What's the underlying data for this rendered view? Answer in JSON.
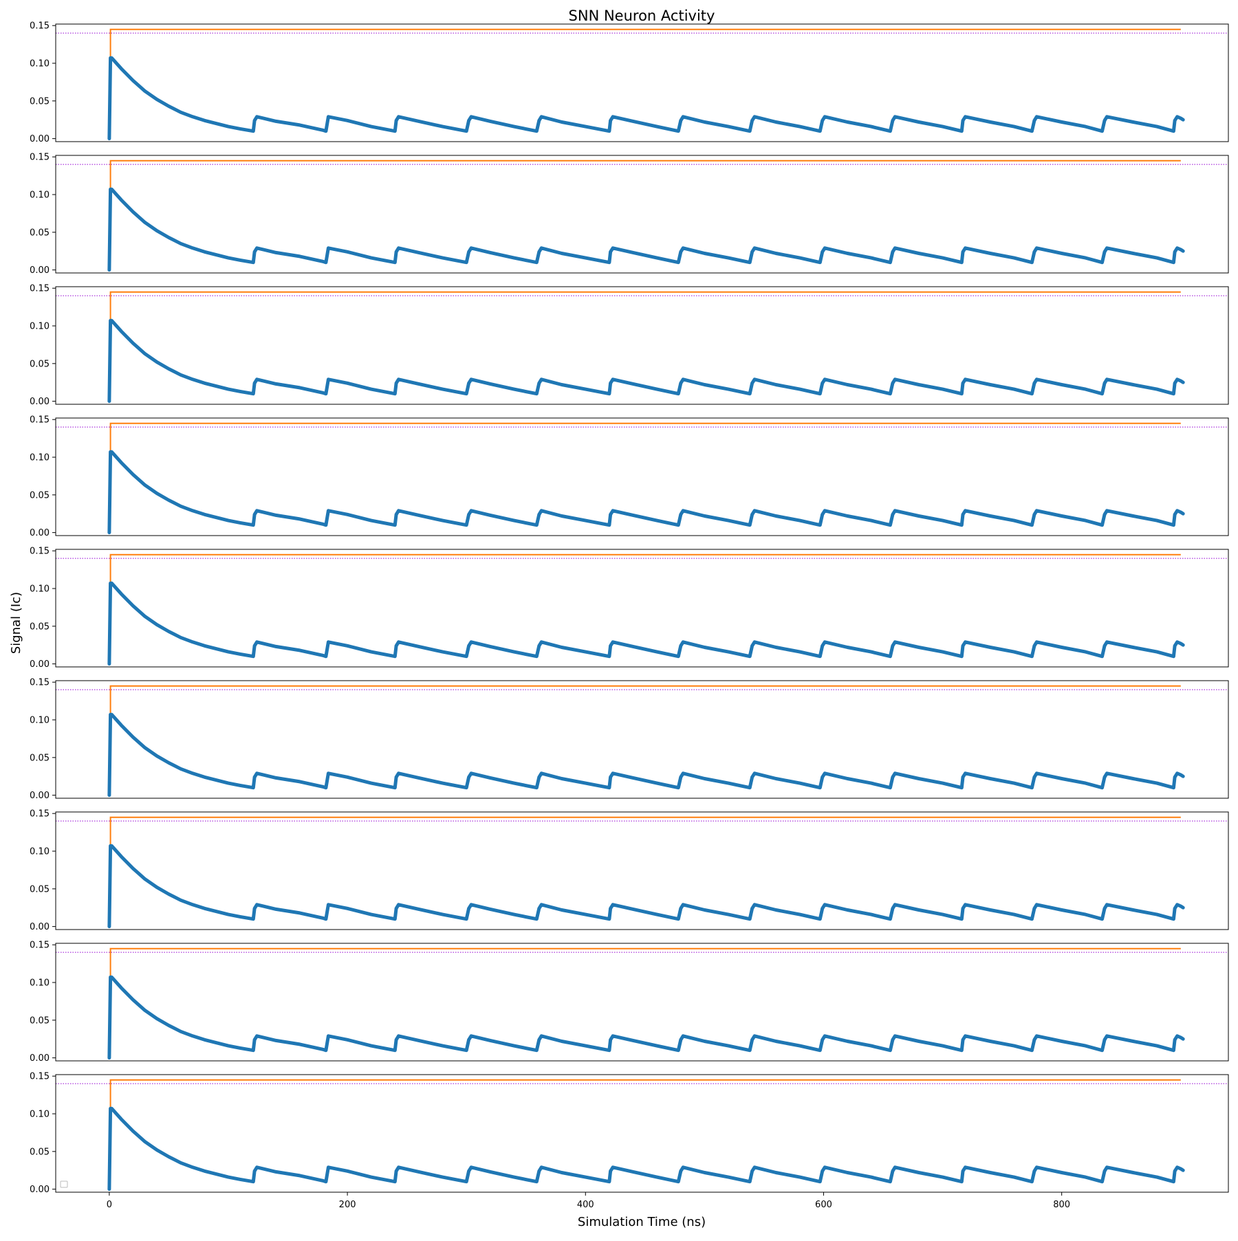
{
  "chart_data": {
    "type": "line",
    "title": "SNN Neuron Activity",
    "xlabel": "Simulation Time (ns)",
    "ylabel": "Signal (Ic)",
    "panel_count": 9,
    "xlim": [
      -45,
      940
    ],
    "ylim": [
      -0.004,
      0.152
    ],
    "xticks": [
      0,
      200,
      400,
      600,
      800
    ],
    "xtick_labels": [
      "0",
      "200",
      "400",
      "600",
      "800"
    ],
    "yticks": [
      0.0,
      0.05,
      0.1,
      0.15
    ],
    "ytick_labels": [
      "0.00",
      "0.05",
      "0.10",
      "0.15"
    ],
    "grid": false,
    "legend": "empty legend box at lower-left of last panel",
    "colors": {
      "signal": "#1f77b4",
      "threshold": "#ff7f0e",
      "reference": "#9400d3"
    },
    "series": [
      {
        "role": "signal",
        "x": [
          0,
          1,
          2,
          10,
          20,
          30,
          40,
          50,
          60,
          70,
          80,
          90,
          100,
          110,
          121,
          122,
          124,
          140,
          160,
          180,
          182,
          184,
          200,
          220,
          240,
          241,
          243,
          260,
          280,
          300,
          302,
          304,
          320,
          340,
          359,
          361,
          363,
          380,
          400,
          420,
          421,
          423,
          440,
          460,
          478,
          480,
          482,
          500,
          520,
          538,
          540,
          542,
          560,
          580,
          597,
          599,
          601,
          620,
          640,
          656,
          658,
          660,
          680,
          700,
          716,
          717,
          719,
          740,
          760,
          775,
          777,
          779,
          800,
          820,
          834,
          836,
          838,
          860,
          880,
          894,
          895,
          897,
          900,
          902
        ],
        "values": [
          0.0,
          0.107,
          0.107,
          0.093,
          0.077,
          0.063,
          0.052,
          0.043,
          0.035,
          0.029,
          0.024,
          0.02,
          0.016,
          0.013,
          0.01,
          0.024,
          0.029,
          0.023,
          0.018,
          0.011,
          0.01,
          0.029,
          0.024,
          0.016,
          0.01,
          0.024,
          0.029,
          0.023,
          0.016,
          0.01,
          0.024,
          0.029,
          0.023,
          0.016,
          0.01,
          0.024,
          0.029,
          0.022,
          0.016,
          0.01,
          0.024,
          0.029,
          0.023,
          0.016,
          0.01,
          0.024,
          0.029,
          0.022,
          0.016,
          0.01,
          0.024,
          0.029,
          0.022,
          0.016,
          0.01,
          0.024,
          0.029,
          0.022,
          0.016,
          0.01,
          0.024,
          0.029,
          0.022,
          0.016,
          0.01,
          0.024,
          0.029,
          0.022,
          0.016,
          0.01,
          0.024,
          0.029,
          0.022,
          0.016,
          0.01,
          0.024,
          0.029,
          0.022,
          0.016,
          0.01,
          0.024,
          0.029,
          0.027,
          0.025
        ]
      },
      {
        "role": "threshold",
        "x": [
          0,
          1,
          1,
          900
        ],
        "values": [
          0.107,
          0.107,
          0.145,
          0.145
        ]
      },
      {
        "role": "reference",
        "x": [
          -45,
          940
        ],
        "values": [
          0.14,
          0.14
        ]
      }
    ]
  }
}
